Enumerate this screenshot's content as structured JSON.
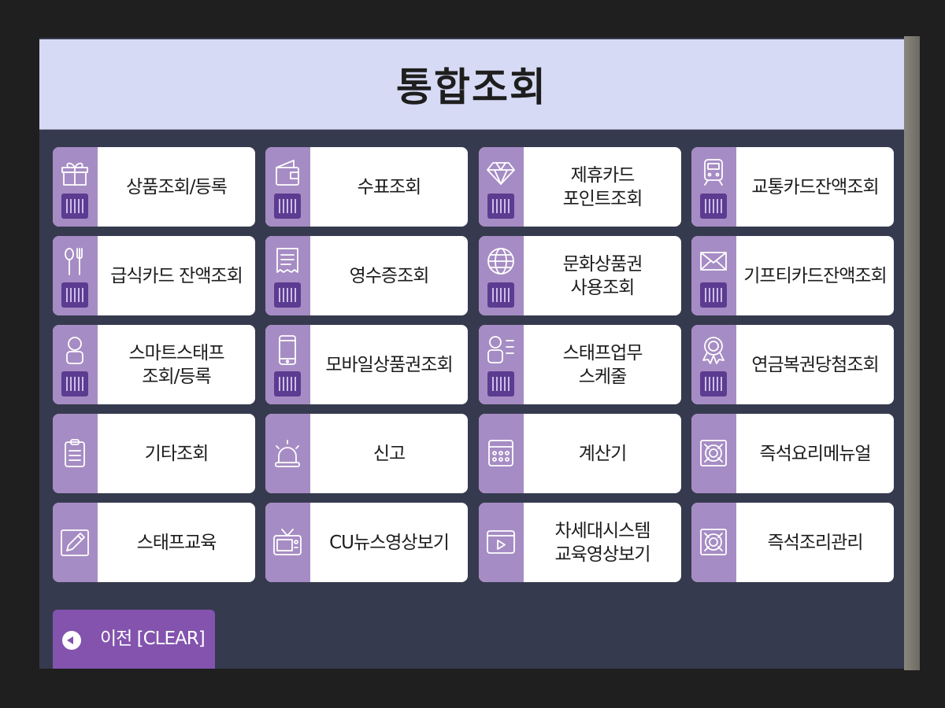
{
  "header": {
    "title": "통합조회"
  },
  "tiles": [
    {
      "lines": [
        "상품조회/등록"
      ],
      "icon": "gift-icon",
      "barcode": true
    },
    {
      "lines": [
        "수표조회"
      ],
      "icon": "wallet-icon",
      "barcode": true
    },
    {
      "lines": [
        "제휴카드",
        "포인트조회"
      ],
      "icon": "diamond-icon",
      "barcode": true
    },
    {
      "lines": [
        "교통카드잔액조회"
      ],
      "icon": "train-icon",
      "barcode": true
    },
    {
      "lines": [
        "급식카드 잔액조회"
      ],
      "icon": "fork-spoon-icon",
      "barcode": true
    },
    {
      "lines": [
        "영수증조회"
      ],
      "icon": "receipt-icon",
      "barcode": true
    },
    {
      "lines": [
        "문화상품권",
        "사용조회"
      ],
      "icon": "globe-icon",
      "barcode": true
    },
    {
      "lines": [
        "기프티카드잔액조회"
      ],
      "icon": "envelope-icon",
      "barcode": true
    },
    {
      "lines": [
        "스마트스태프",
        "조회/등록"
      ],
      "icon": "person-icon",
      "barcode": true
    },
    {
      "lines": [
        "모바일상품권조회"
      ],
      "icon": "mobile-phone-icon",
      "barcode": true
    },
    {
      "lines": [
        "스태프업무",
        "스케줄"
      ],
      "icon": "staff-list-icon",
      "barcode": true
    },
    {
      "lines": [
        "연금복권당첨조회"
      ],
      "icon": "award-ribbon-icon",
      "barcode": true
    },
    {
      "lines": [
        "기타조회"
      ],
      "icon": "clipboard-icon",
      "barcode": false
    },
    {
      "lines": [
        "신고"
      ],
      "icon": "siren-icon",
      "barcode": false
    },
    {
      "lines": [
        "계산기"
      ],
      "icon": "calculator-icon",
      "barcode": false
    },
    {
      "lines": [
        "즉석요리메뉴얼"
      ],
      "icon": "safe-icon",
      "barcode": false
    },
    {
      "lines": [
        "스태프교육"
      ],
      "icon": "pencil-icon",
      "barcode": false
    },
    {
      "lines": [
        "CU뉴스영상보기"
      ],
      "icon": "tv-icon",
      "barcode": false
    },
    {
      "lines": [
        "차세대시스템",
        "교육영상보기"
      ],
      "icon": "video-play-icon",
      "barcode": false
    },
    {
      "lines": [
        "즉석조리관리"
      ],
      "icon": "safe-icon",
      "barcode": false
    }
  ],
  "footer": {
    "back_label": "이전 [CLEAR]",
    "back_icon": "back-arrow-icon"
  },
  "colors": {
    "header_bg": "#d7daf4",
    "screen_bg": "#363a4e",
    "tile_strip": "#a68cc4",
    "barcode_bg": "#5b3c91",
    "back_button": "#8353ae"
  }
}
